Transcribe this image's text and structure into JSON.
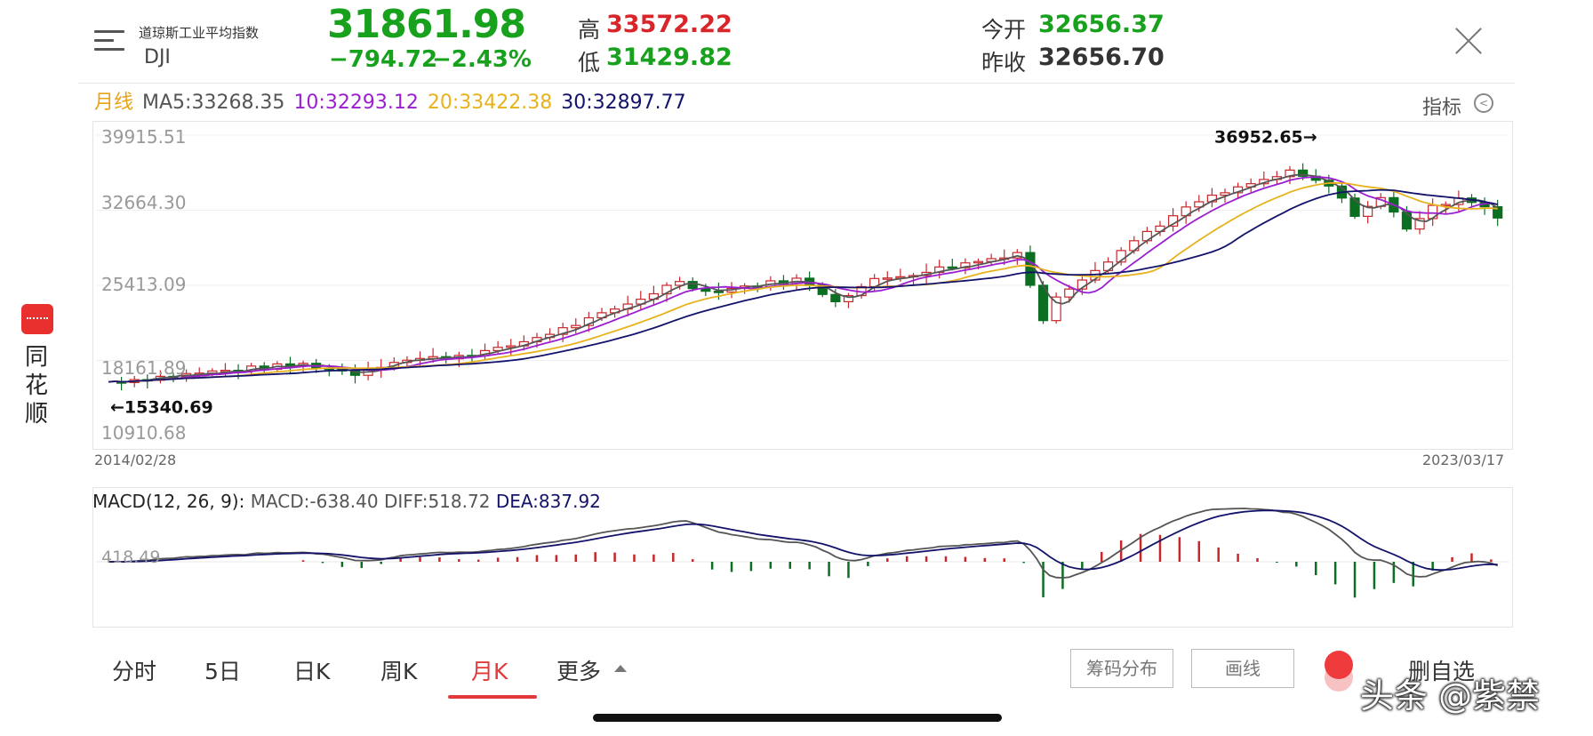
{
  "header": {
    "index_name": "道琼斯工业平均指数",
    "index_code": "DJI",
    "price": "31861.98",
    "change": "−794.72",
    "change_pct": "−2.43%",
    "high_label": "高",
    "high_value": "33572.22",
    "low_label": "低",
    "low_value": "31429.82",
    "open_label": "今开",
    "open_value": "32656.37",
    "prev_close_label": "昨收",
    "prev_close_value": "32656.70"
  },
  "ma_legend": {
    "period": "月线",
    "ma5": "MA5:33268.35",
    "ma10": "10:32293.12",
    "ma20": "20:33422.38",
    "ma30": "30:32897.77"
  },
  "indicator_label": "指标",
  "app_name": "同花顺",
  "chart_data": {
    "type": "candlestick",
    "period": "monthly",
    "y_ticks": [
      "39915.51",
      "32664.30",
      "25413.09",
      "18161.89",
      "10910.68"
    ],
    "ylim": [
      10910.68,
      39915.51
    ],
    "start_date": "2014/02/28",
    "end_date": "2023/03/17",
    "max_label": "36952.65→",
    "min_label": "←15340.69",
    "max_value": 36952.65,
    "min_value": 15340.69,
    "macd": {
      "legend_title": "MACD(12, 26, 9):",
      "macd_value": "MACD:-638.40",
      "diff_value": "DIFF:518.72",
      "dea_value": "DEA:837.92",
      "zero_tick": "418.49"
    },
    "colors": {
      "up": "#c8262a",
      "down": "#0b6e21",
      "ma5": "#555555",
      "ma10": "#9b1fd0",
      "ma20": "#e8b21c",
      "ma30": "#13136b"
    }
  },
  "tabs": [
    {
      "label": "分时",
      "active": false
    },
    {
      "label": "5日",
      "active": false
    },
    {
      "label": "日K",
      "active": false
    },
    {
      "label": "周K",
      "active": false
    },
    {
      "label": "月K",
      "active": true
    },
    {
      "label": "更多",
      "active": false
    }
  ],
  "buttons": {
    "chip_distribution": "筹码分布",
    "draw_line": "画线",
    "remove_favorite": "删自选"
  },
  "watermark": "头条 @紫禁"
}
